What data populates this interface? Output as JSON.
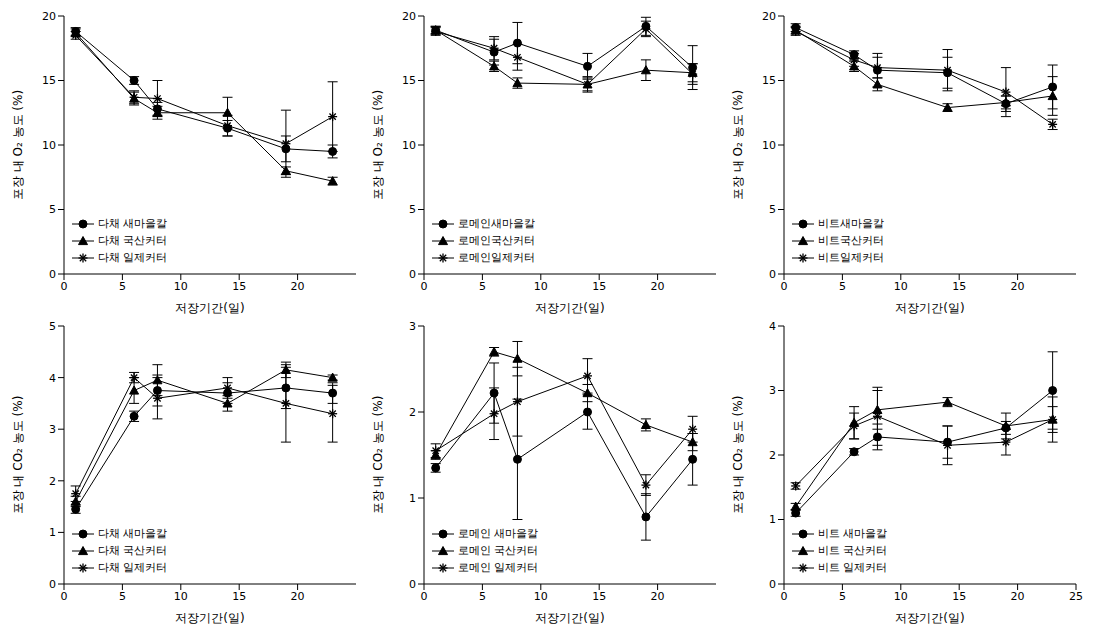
{
  "chart_data": [
    {
      "type": "line",
      "xlabel": "저장기간(일)",
      "ylabel": "포장 내 O₂ 농도 (%)",
      "x": [
        1,
        6,
        8,
        14,
        19,
        23
      ],
      "xlim": [
        0,
        25
      ],
      "xticks": [
        0,
        5,
        10,
        15,
        20
      ],
      "ylim": [
        0,
        20
      ],
      "yticks": [
        0,
        5,
        10,
        15,
        20
      ],
      "legend": "lower left",
      "series": [
        {
          "name": "다채 새마을칼",
          "color": "#000000",
          "marker": "circle",
          "values": [
            18.8,
            15.0,
            12.8,
            11.3,
            9.7,
            9.5
          ],
          "errors": [
            0.3,
            0.3,
            0.5,
            0.6,
            1.0,
            0.5
          ]
        },
        {
          "name": "다채 국산커터",
          "color": "#000000",
          "marker": "triangle",
          "values": [
            18.7,
            13.6,
            12.5,
            12.5,
            8.0,
            7.2
          ],
          "errors": [
            0.3,
            0.5,
            0.5,
            1.2,
            0.3,
            0.3
          ]
        },
        {
          "name": "다채 일제커터",
          "color": "#000000",
          "marker": "star",
          "values": [
            18.5,
            13.7,
            13.6,
            11.5,
            10.1,
            12.2
          ],
          "errors": [
            0.3,
            0.5,
            1.4,
            0.8,
            2.6,
            2.7
          ]
        }
      ]
    },
    {
      "type": "line",
      "xlabel": "저장기간(일)",
      "ylabel": "포장 내 O₂ 농도 (%)",
      "x": [
        1,
        6,
        8,
        14,
        19,
        23
      ],
      "xlim": [
        0,
        25
      ],
      "xticks": [
        0,
        5,
        10,
        15,
        20
      ],
      "ylim": [
        0,
        20
      ],
      "yticks": [
        0,
        5,
        10,
        15,
        20
      ],
      "legend": "lower left",
      "series": [
        {
          "name": "로메인새마을칼",
          "color": "#000000",
          "marker": "circle",
          "values": [
            18.9,
            17.2,
            17.9,
            16.1,
            19.2,
            16.0
          ],
          "errors": [
            0.3,
            1.0,
            1.6,
            1.0,
            0.7,
            1.7
          ]
        },
        {
          "name": "로메인국산커터",
          "color": "#000000",
          "marker": "triangle",
          "values": [
            18.9,
            16.1,
            14.8,
            14.7,
            15.8,
            15.6
          ],
          "errors": [
            0.3,
            0.4,
            0.4,
            0.5,
            0.8,
            0.7
          ]
        },
        {
          "name": "로메인일제커터",
          "color": "#000000",
          "marker": "star",
          "values": [
            18.8,
            17.5,
            16.8,
            14.7,
            19.0,
            15.5
          ],
          "errors": [
            0.3,
            0.9,
            1.0,
            0.6,
            0.6,
            0.8
          ]
        }
      ]
    },
    {
      "type": "line",
      "xlabel": "저장기간(일)",
      "ylabel": "포장 내 O₂ 농도 (%)",
      "x": [
        1,
        6,
        8,
        14,
        19,
        23
      ],
      "xlim": [
        0,
        25
      ],
      "xticks": [
        0,
        5,
        10,
        15,
        20
      ],
      "ylim": [
        0,
        20
      ],
      "yticks": [
        0,
        5,
        10,
        15,
        20
      ],
      "legend": "lower left",
      "series": [
        {
          "name": "비트새마을칼",
          "color": "#000000",
          "marker": "circle",
          "values": [
            19.1,
            17.0,
            15.8,
            15.6,
            13.2,
            14.5
          ],
          "errors": [
            0.3,
            0.3,
            1.3,
            1.2,
            0.6,
            1.7
          ]
        },
        {
          "name": "비트국산커터",
          "color": "#000000",
          "marker": "triangle",
          "values": [
            18.9,
            16.1,
            14.7,
            12.9,
            13.3,
            13.8
          ],
          "errors": [
            0.3,
            0.4,
            0.5,
            0.3,
            0.5,
            1.5
          ]
        },
        {
          "name": "비트일제커터",
          "color": "#000000",
          "marker": "star",
          "values": [
            18.8,
            16.6,
            16.0,
            15.8,
            14.1,
            11.6
          ],
          "errors": [
            0.3,
            0.5,
            0.8,
            1.6,
            1.9,
            0.4
          ]
        }
      ]
    },
    {
      "type": "line",
      "xlabel": "저장기간(일)",
      "ylabel": "포장 내 CO₂ 농도 (%)",
      "x": [
        1,
        6,
        8,
        14,
        19,
        23
      ],
      "xlim": [
        0,
        25
      ],
      "xticks": [
        0,
        5,
        10,
        15,
        20
      ],
      "ylim": [
        0,
        5
      ],
      "yticks": [
        0,
        1,
        2,
        3,
        4,
        5
      ],
      "legend": "lower left",
      "series": [
        {
          "name": "다채 새마을칼",
          "color": "#000000",
          "marker": "circle",
          "values": [
            1.45,
            3.25,
            3.75,
            3.7,
            3.8,
            3.7
          ],
          "errors": [
            0.08,
            0.1,
            0.3,
            0.2,
            0.4,
            0.2
          ]
        },
        {
          "name": "다채 국산커터",
          "color": "#000000",
          "marker": "triangle",
          "values": [
            1.6,
            3.75,
            3.95,
            3.5,
            4.15,
            4.0
          ],
          "errors": [
            0.1,
            0.25,
            0.3,
            0.15,
            0.15,
            0.05
          ]
        },
        {
          "name": "다채 일제커터",
          "color": "#000000",
          "marker": "star",
          "values": [
            1.75,
            4.0,
            3.6,
            3.8,
            3.5,
            3.3
          ],
          "errors": [
            0.15,
            0.1,
            0.4,
            0.2,
            0.75,
            0.55
          ]
        }
      ]
    },
    {
      "type": "line",
      "xlabel": "저장기간(일)",
      "ylabel": "포장 내 CO₂ 농도 (%)",
      "x": [
        1,
        6,
        8,
        14,
        19,
        23
      ],
      "xlim": [
        0,
        25
      ],
      "xticks": [
        0,
        5,
        10,
        15,
        20
      ],
      "ylim": [
        0,
        3
      ],
      "yticks": [
        0,
        1,
        2,
        3
      ],
      "legend": "lower left",
      "series": [
        {
          "name": "로메인 새마을칼",
          "color": "#000000",
          "marker": "circle",
          "values": [
            1.35,
            2.22,
            1.45,
            2.0,
            0.78,
            1.45
          ],
          "errors": [
            0.05,
            0.35,
            0.7,
            0.2,
            0.27,
            0.3
          ]
        },
        {
          "name": "로메인 국산커터",
          "color": "#000000",
          "marker": "triangle",
          "values": [
            1.5,
            2.7,
            2.62,
            2.22,
            1.85,
            1.65
          ],
          "errors": [
            0.05,
            0.05,
            0.2,
            0.1,
            0.07,
            0.1
          ]
        },
        {
          "name": "로메인 일제커터",
          "color": "#000000",
          "marker": "star",
          "values": [
            1.55,
            1.98,
            2.12,
            2.42,
            1.15,
            1.8
          ],
          "errors": [
            0.08,
            0.3,
            0.4,
            0.2,
            0.12,
            0.15
          ]
        }
      ]
    },
    {
      "type": "line",
      "xlabel": "저장기간(일)",
      "ylabel": "포장 내 CO₂ 농도 (%)",
      "x": [
        1,
        6,
        8,
        14,
        19,
        23
      ],
      "xlim": [
        0,
        25
      ],
      "xticks": [
        0,
        5,
        10,
        15,
        20,
        25
      ],
      "ylim": [
        0,
        4
      ],
      "yticks": [
        0,
        1,
        2,
        3,
        4
      ],
      "legend": "lower left",
      "series": [
        {
          "name": "비트 새마을칼",
          "color": "#000000",
          "marker": "circle",
          "values": [
            1.1,
            2.05,
            2.28,
            2.2,
            2.42,
            3.0
          ],
          "errors": [
            0.05,
            0.05,
            0.2,
            0.25,
            0.1,
            0.6
          ]
        },
        {
          "name": "비트 국산커터",
          "color": "#000000",
          "marker": "triangle",
          "values": [
            1.2,
            2.5,
            2.7,
            2.82,
            2.45,
            2.55
          ],
          "errors": [
            0.05,
            0.25,
            0.3,
            0.07,
            0.2,
            0.35
          ]
        },
        {
          "name": "비트 일제커터",
          "color": "#000000",
          "marker": "star",
          "values": [
            1.52,
            2.45,
            2.6,
            2.15,
            2.2,
            2.55
          ],
          "errors": [
            0.05,
            0.2,
            0.45,
            0.3,
            0.2,
            0.2
          ]
        }
      ]
    }
  ]
}
